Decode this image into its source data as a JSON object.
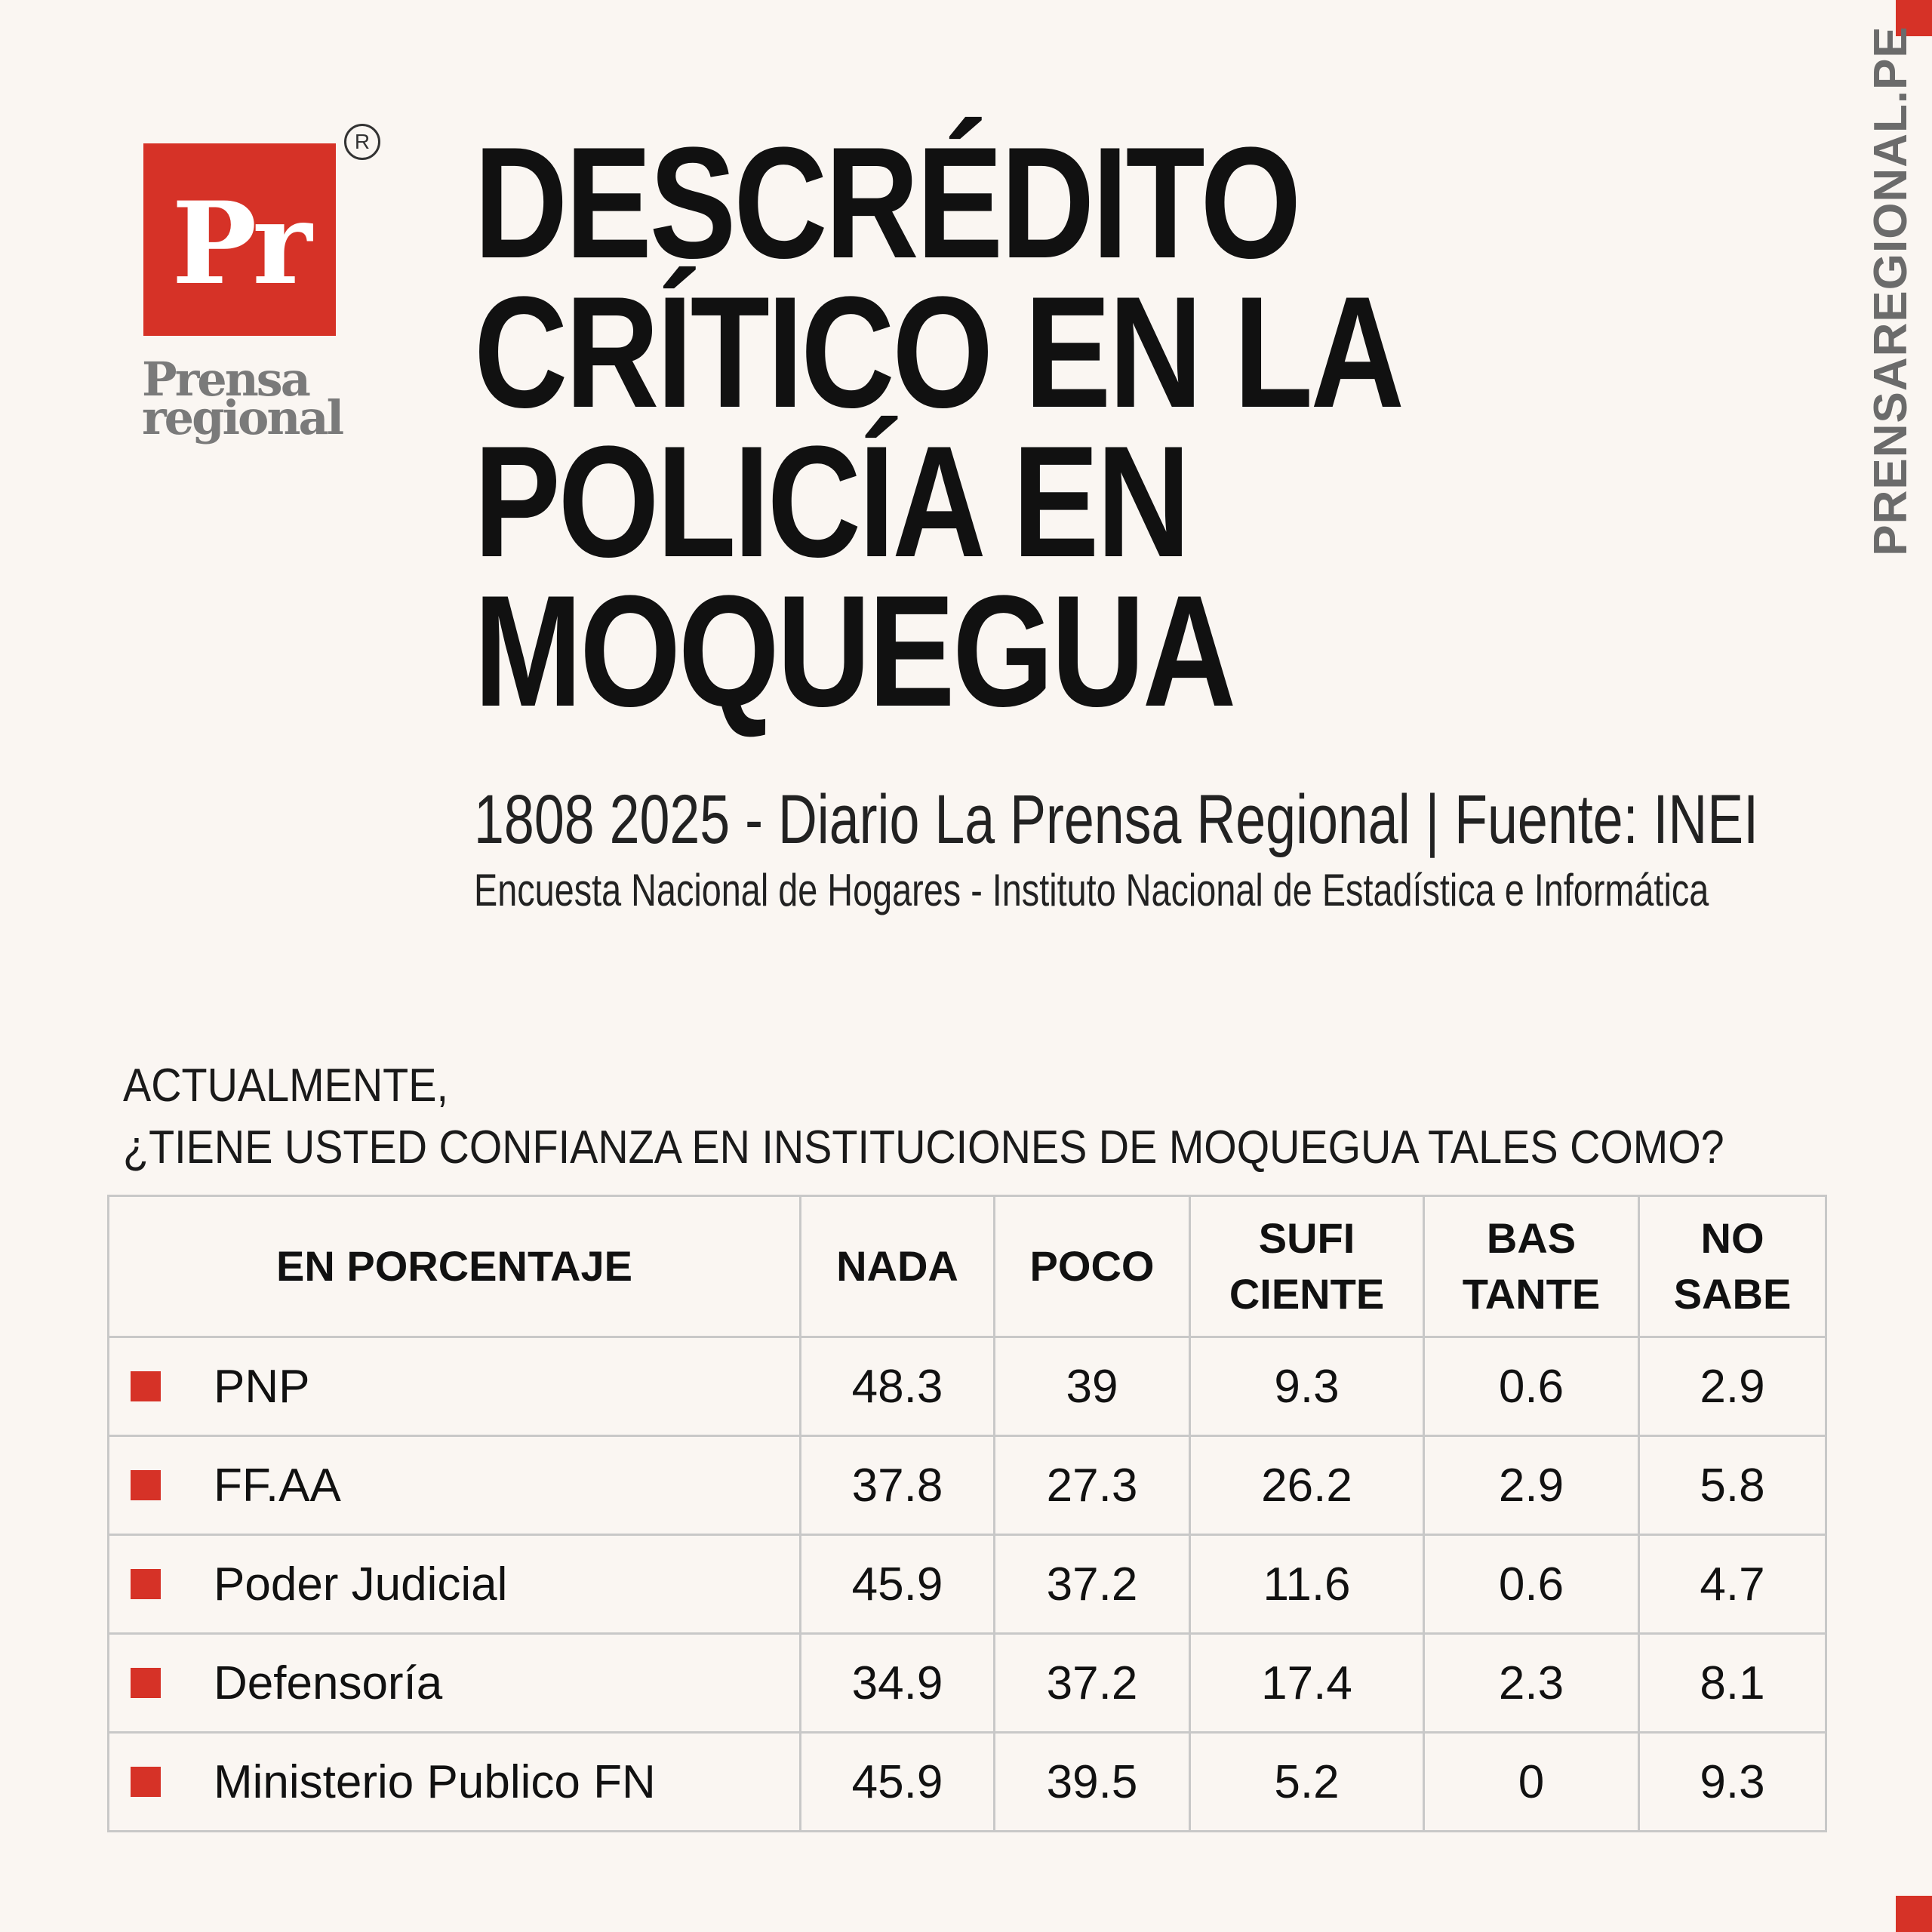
{
  "site": "PRENSAREGIONAL.PE",
  "logo": {
    "mark": "Pr",
    "registered": "R",
    "name_line1": "Prensa",
    "name_line2": "regional"
  },
  "headline": {
    "lines": [
      "DESCRÉDITO",
      "CRÍTICO EN LA",
      "POLICÍA EN",
      "MOQUEGUA"
    ]
  },
  "byline": "1808 2025 - Diario La Prensa Regional | Fuente: INEI",
  "subline": "Encuesta Nacional de Hogares - Instituto Nacional de Estadística e Informática",
  "question": {
    "line1": "ACTUALMENTE,",
    "line2": "¿TIENE USTED CONFIANZA EN INSTITUCIONES DE MOQUEGUA TALES COMO?"
  },
  "table": {
    "headers": [
      [
        "EN PORCENTAJE"
      ],
      [
        "NADA"
      ],
      [
        "POCO"
      ],
      [
        "SUFI",
        "CIENTE"
      ],
      [
        "BAS",
        "TANTE"
      ],
      [
        "NO",
        "SABE"
      ]
    ],
    "rows": [
      {
        "institution": "PNP",
        "values": [
          "48.3",
          "39",
          "9.3",
          "0.6",
          "2.9"
        ]
      },
      {
        "institution": "FF.AA",
        "values": [
          "37.8",
          "27.3",
          "26.2",
          "2.9",
          "5.8"
        ]
      },
      {
        "institution": "Poder Judicial",
        "values": [
          "45.9",
          "37.2",
          "11.6",
          "0.6",
          "4.7"
        ]
      },
      {
        "institution": "Defensoría",
        "values": [
          "34.9",
          "37.2",
          "17.4",
          "2.3",
          "8.1"
        ]
      },
      {
        "institution": "Ministerio Publico FN",
        "values": [
          "45.9",
          "39.5",
          "5.2",
          "0",
          "9.3"
        ]
      }
    ]
  },
  "colors": {
    "accent": "#d63227",
    "background": "#faf6f2",
    "grid": "#c8c8c8"
  }
}
